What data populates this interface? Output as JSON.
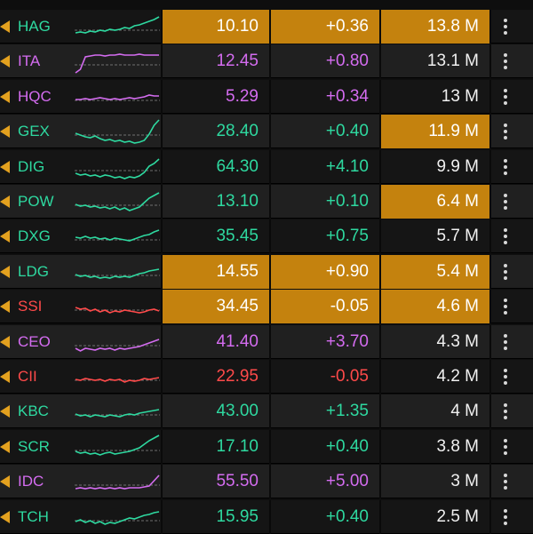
{
  "colors": {
    "green": "#2ed9a0",
    "purple": "#d46cf0",
    "red": "#ff4a4a",
    "highlight": "#c4820e",
    "flag": "#e3a11f"
  },
  "rows": [
    {
      "symbol": "HAG",
      "trend": "green",
      "price": "10.10",
      "change": "+0.36",
      "volume": "13.8 M",
      "hl_price": true,
      "hl_change": true,
      "hl_volume": true,
      "spark": [
        8,
        9,
        8,
        10,
        9,
        11,
        10,
        12,
        11,
        12,
        14,
        13,
        16,
        17,
        19,
        21,
        23,
        26
      ]
    },
    {
      "symbol": "ITA",
      "trend": "purple",
      "price": "12.45",
      "change": "+0.80",
      "volume": "13.1 M",
      "hl_price": false,
      "hl_change": false,
      "hl_volume": false,
      "spark": [
        2,
        6,
        20,
        21,
        22,
        22,
        21,
        22,
        22,
        23,
        22,
        22,
        22,
        23,
        22,
        22,
        22,
        22
      ]
    },
    {
      "symbol": "HQC",
      "trend": "purple",
      "price": "5.29",
      "change": "+0.34",
      "volume": "13 M",
      "hl_price": false,
      "hl_change": false,
      "hl_volume": false,
      "spark": [
        12,
        12,
        13,
        12,
        13,
        14,
        13,
        12,
        13,
        12,
        13,
        14,
        13,
        14,
        15,
        17,
        16,
        16
      ]
    },
    {
      "symbol": "GEX",
      "trend": "green",
      "price": "28.40",
      "change": "+0.40",
      "volume": "11.9 M",
      "hl_price": false,
      "hl_change": false,
      "hl_volume": true,
      "spark": [
        13,
        11,
        9,
        8,
        10,
        7,
        5,
        6,
        4,
        5,
        3,
        4,
        2,
        3,
        5,
        12,
        22,
        28
      ]
    },
    {
      "symbol": "DIG",
      "trend": "green",
      "price": "64.30",
      "change": "+4.10",
      "volume": "9.9 M",
      "hl_price": false,
      "hl_change": false,
      "hl_volume": false,
      "spark": [
        8,
        6,
        7,
        5,
        6,
        4,
        6,
        5,
        3,
        4,
        2,
        4,
        3,
        5,
        9,
        16,
        19,
        24
      ]
    },
    {
      "symbol": "POW",
      "trend": "green",
      "price": "13.10",
      "change": "+0.10",
      "volume": "6.4 M",
      "hl_price": false,
      "hl_change": false,
      "hl_volume": true,
      "spark": [
        12,
        10,
        11,
        9,
        10,
        8,
        9,
        7,
        9,
        6,
        8,
        5,
        7,
        9,
        14,
        19,
        22,
        25
      ]
    },
    {
      "symbol": "DXG",
      "trend": "green",
      "price": "35.45",
      "change": "+0.75",
      "volume": "5.7 M",
      "hl_price": false,
      "hl_change": false,
      "hl_volume": false,
      "spark": [
        14,
        13,
        15,
        13,
        14,
        12,
        13,
        11,
        13,
        12,
        11,
        10,
        12,
        14,
        16,
        17,
        20,
        22
      ]
    },
    {
      "symbol": "LDG",
      "trend": "green",
      "price": "14.55",
      "change": "+0.90",
      "volume": "5.4 M",
      "hl_price": true,
      "hl_change": true,
      "hl_volume": true,
      "spark": [
        12,
        10,
        11,
        9,
        10,
        8,
        9,
        8,
        10,
        9,
        10,
        9,
        11,
        13,
        14,
        16,
        17,
        18
      ]
    },
    {
      "symbol": "SSI",
      "trend": "red",
      "price": "34.45",
      "change": "-0.05",
      "volume": "4.6 M",
      "hl_price": true,
      "hl_change": true,
      "hl_volume": true,
      "spark": [
        14,
        12,
        13,
        10,
        12,
        9,
        11,
        8,
        10,
        9,
        11,
        10,
        9,
        8,
        9,
        11,
        12,
        10
      ]
    },
    {
      "symbol": "CEO",
      "trend": "purple",
      "price": "41.40",
      "change": "+3.70",
      "volume": "4.3 M",
      "hl_price": false,
      "hl_change": false,
      "hl_volume": false,
      "spark": [
        8,
        5,
        8,
        7,
        6,
        8,
        7,
        8,
        6,
        8,
        7,
        8,
        9,
        10,
        12,
        14,
        16,
        18
      ]
    },
    {
      "symbol": "CII",
      "trend": "red",
      "price": "22.95",
      "change": "-0.05",
      "volume": "4.2 M",
      "hl_price": false,
      "hl_change": false,
      "hl_volume": false,
      "spark": [
        12,
        11,
        13,
        12,
        11,
        12,
        10,
        12,
        11,
        12,
        9,
        11,
        10,
        11,
        13,
        12,
        13,
        14
      ]
    },
    {
      "symbol": "KBC",
      "trend": "green",
      "price": "43.00",
      "change": "+1.35",
      "volume": "4 M",
      "hl_price": false,
      "hl_change": false,
      "hl_volume": false,
      "spark": [
        12,
        10,
        11,
        9,
        11,
        10,
        9,
        11,
        10,
        9,
        11,
        12,
        11,
        13,
        14,
        15,
        16,
        17
      ]
    },
    {
      "symbol": "SCR",
      "trend": "green",
      "price": "17.10",
      "change": "+0.40",
      "volume": "3.8 M",
      "hl_price": false,
      "hl_change": false,
      "hl_volume": false,
      "spark": [
        10,
        8,
        9,
        7,
        8,
        6,
        8,
        9,
        7,
        8,
        9,
        10,
        12,
        14,
        18,
        22,
        25,
        28
      ]
    },
    {
      "symbol": "IDC",
      "trend": "purple",
      "price": "55.50",
      "change": "+5.00",
      "volume": "3 M",
      "hl_price": false,
      "hl_change": false,
      "hl_volume": false,
      "spark": [
        7,
        8,
        7,
        8,
        7,
        8,
        7,
        8,
        7,
        8,
        7,
        8,
        8,
        8,
        9,
        10,
        16,
        22
      ]
    },
    {
      "symbol": "TCH",
      "trend": "green",
      "price": "15.95",
      "change": "+0.40",
      "volume": "2.5 M",
      "hl_price": false,
      "hl_change": false,
      "hl_volume": false,
      "spark": [
        10,
        12,
        9,
        11,
        8,
        10,
        7,
        9,
        8,
        10,
        12,
        14,
        13,
        15,
        17,
        18,
        20,
        21
      ]
    }
  ]
}
